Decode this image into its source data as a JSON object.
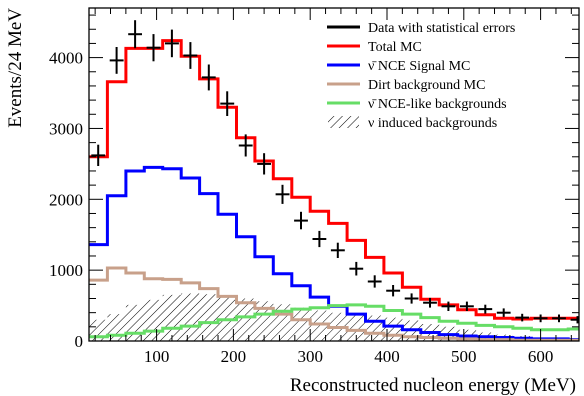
{
  "chart_data": {
    "type": "line",
    "xlabel": "Reconstructed nucleon energy (MeV)",
    "ylabel": "Events/24 MeV",
    "xlim": [
      12,
      650
    ],
    "ylim": [
      0,
      4700
    ],
    "x_ticks": [
      100,
      200,
      300,
      400,
      500,
      600
    ],
    "y_ticks": [
      0,
      1000,
      2000,
      3000,
      4000
    ],
    "bin_edges": [
      12,
      36,
      60,
      84,
      108,
      132,
      156,
      180,
      204,
      228,
      252,
      276,
      300,
      324,
      348,
      372,
      396,
      420,
      444,
      468,
      492,
      516,
      540,
      564,
      588,
      612,
      636,
      650
    ],
    "legend_position": "top-right",
    "grid": false,
    "series": [
      {
        "name": "Data with statistical errors",
        "kind": "points",
        "color": "#000000",
        "x": [
          12,
          36,
          60,
          84,
          108,
          132,
          156,
          180,
          204,
          228,
          252,
          276,
          300,
          324,
          348,
          372,
          396,
          420,
          444,
          468,
          492,
          516,
          540,
          564,
          588,
          612,
          636
        ],
        "values": [
          2620,
          3960,
          4330,
          4140,
          4200,
          4030,
          3720,
          3350,
          2760,
          2500,
          2070,
          1700,
          1440,
          1280,
          1020,
          840,
          710,
          600,
          540,
          490,
          490,
          450,
          400,
          330,
          320,
          320,
          300
        ],
        "errors": [
          50,
          63,
          66,
          64,
          65,
          63,
          61,
          58,
          52,
          50,
          45,
          41,
          38,
          36,
          32,
          29,
          27,
          24,
          23,
          22,
          22,
          21,
          20,
          18,
          18,
          18,
          17
        ]
      },
      {
        "name": "Total MC",
        "kind": "step",
        "color": "#ff0000",
        "values": [
          2600,
          3660,
          4130,
          4130,
          4240,
          4020,
          3700,
          3300,
          2870,
          2540,
          2290,
          2030,
          1830,
          1660,
          1420,
          1180,
          960,
          760,
          590,
          510,
          440,
          370,
          320,
          310,
          320,
          320,
          320
        ]
      },
      {
        "name": "ν̄ NCE Signal MC",
        "kind": "step",
        "color": "#0000ff",
        "values": [
          1360,
          2050,
          2400,
          2450,
          2430,
          2300,
          2080,
          1790,
          1470,
          1190,
          950,
          780,
          620,
          490,
          380,
          280,
          210,
          160,
          120,
          90,
          70,
          60,
          50,
          40,
          30,
          30,
          20
        ]
      },
      {
        "name": "Dirt background MC",
        "kind": "step",
        "color": "#c8a08a",
        "values": [
          860,
          1030,
          960,
          880,
          870,
          820,
          740,
          630,
          540,
          460,
          380,
          300,
          240,
          190,
          150,
          110,
          80,
          60,
          50,
          40,
          30,
          20,
          20,
          10,
          10,
          10,
          10
        ]
      },
      {
        "name": "ν̄ NCE-like backgrounds",
        "kind": "step",
        "color": "#66dd66",
        "values": [
          60,
          80,
          110,
          140,
          180,
          210,
          260,
          300,
          340,
          380,
          420,
          450,
          470,
          500,
          510,
          490,
          430,
          380,
          330,
          280,
          250,
          220,
          200,
          180,
          160,
          160,
          170
        ]
      },
      {
        "name": "ν induced backgrounds",
        "kind": "hatched",
        "color": "#000000",
        "values": [
          300,
          380,
          510,
          580,
          650,
          670,
          660,
          640,
          600,
          560,
          520,
          470,
          430,
          400,
          380,
          360,
          330,
          290,
          240,
          200,
          160,
          120,
          90,
          70,
          50,
          40,
          30
        ]
      }
    ]
  }
}
